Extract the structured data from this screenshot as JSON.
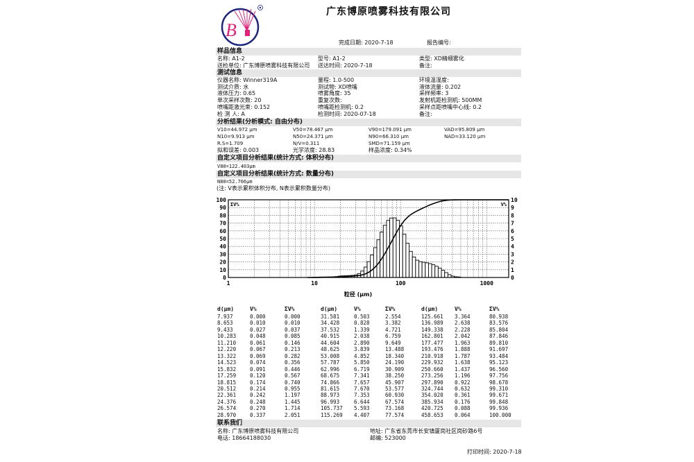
{
  "header": {
    "company": "广东博原喷雾科技有限公司",
    "logo_text": "B",
    "completion_date": "完成日期: 2020-7-18",
    "report_no": "报告编号:"
  },
  "sample": {
    "title": "样品信息",
    "rows": [
      [
        "名称: A1-2",
        "型号: A1-2",
        "类型: XD精细雾化"
      ],
      [
        "送检单位: 广东博原喷雾科技有限公司",
        "送达时间: 2020-7-18",
        "备注:"
      ]
    ]
  },
  "test": {
    "title": "测试信息",
    "rows": [
      [
        "仪器名称: Winner319A",
        "量程: 1.0-500",
        "环境温湿度:"
      ],
      [
        "测试介质: 水",
        "测试物: XD喷嘴",
        "液体流量: 0.202"
      ],
      [
        "液体压力: 0.65",
        "喷雾角度: 35",
        "采样频率: 3"
      ],
      [
        "单次采样次数: 20",
        "重复次数:",
        "发射机距检测机: 500MM"
      ],
      [
        "喷嘴距激光束: 0.152",
        "喷嘴距检测机: 0.2",
        "采样点距喷嘴中心线: 0.2"
      ],
      [
        "检 测 人: A",
        "检测时间: 2020-07-18",
        "备注:"
      ]
    ]
  },
  "analysis": {
    "title": "分析结果(分析模式: 自由分布)",
    "rows": [
      [
        "V10=44.972 μm",
        "V50=78.467 μm",
        "V90=179.091 μm",
        "VAD=95.809 μm"
      ],
      [
        "N10=9.913 μm",
        "N50=24.371 μm",
        "N90=66.310 μm",
        "NAD=33.120 μm"
      ],
      [
        "R.S=1.709",
        "N/V=0.311",
        "SMD=71.159 μm",
        ""
      ],
      [
        "拟和误差: 0.003",
        "光学浓度: 28.83",
        "样品浓度: 0.34%",
        ""
      ]
    ]
  },
  "custom_volume": {
    "title": "自定义项目分析结果(统计方式: 体积分布)",
    "value": "V80=122.403μm"
  },
  "custom_number": {
    "title": "自定义项目分析结果(统计方式: 数量分布)",
    "value": "N80=52.766μm"
  },
  "note": "(注: V表示累积体积分布, N表示累积数量分布)",
  "chart_data": {
    "type": "bar+line",
    "xlabel": "粒径 (μm)",
    "xscale": "log",
    "xlim": [
      1,
      1800
    ],
    "xticks": [
      "1",
      "10",
      "100",
      "1000"
    ],
    "left_axis_label": "ΣV%",
    "ylim_left": [
      0,
      100
    ],
    "yticks_left": [
      "0",
      "10",
      "20",
      "30",
      "40",
      "50",
      "60",
      "70",
      "80",
      "90",
      "100"
    ],
    "right_axis_label": "V%",
    "ylim_right": [
      0,
      10
    ],
    "yticks_right": [
      "0",
      "1",
      "2",
      "3",
      "4",
      "5",
      "6",
      "7",
      "8",
      "9",
      "10"
    ],
    "grid": true,
    "x": [
      7.937,
      8.653,
      9.433,
      10.283,
      11.21,
      12.22,
      13.322,
      14.523,
      15.832,
      17.259,
      18.815,
      20.512,
      22.361,
      24.376,
      26.574,
      28.97,
      31.581,
      34.428,
      37.532,
      40.915,
      44.604,
      48.625,
      53.008,
      57.787,
      62.996,
      68.675,
      74.866,
      81.615,
      88.973,
      96.993,
      105.737,
      115.269,
      125.661,
      136.989,
      149.338,
      162.801,
      177.477,
      193.476,
      210.918,
      229.932,
      250.66,
      273.256,
      297.89,
      324.744,
      354.02,
      385.934,
      420.725,
      458.653
    ],
    "v_percent": [
      0.0,
      0.01,
      0.027,
      0.048,
      0.061,
      0.067,
      0.069,
      0.074,
      0.091,
      0.12,
      0.174,
      0.214,
      0.242,
      0.248,
      0.27,
      0.337,
      0.503,
      0.828,
      1.339,
      2.038,
      2.89,
      3.839,
      4.852,
      5.85,
      6.719,
      7.341,
      7.657,
      7.67,
      7.353,
      6.644,
      5.593,
      4.407,
      3.364,
      2.638,
      2.228,
      2.042,
      1.963,
      1.888,
      1.787,
      1.638,
      1.437,
      1.196,
      0.922,
      0.632,
      0.361,
      0.176,
      0.088,
      0.064
    ],
    "cumulative_percent": [
      0.0,
      0.01,
      0.037,
      0.085,
      0.146,
      0.213,
      0.282,
      0.356,
      0.446,
      0.567,
      0.74,
      0.955,
      1.197,
      1.445,
      1.714,
      2.051,
      2.554,
      3.382,
      4.721,
      6.759,
      9.649,
      13.488,
      18.34,
      24.19,
      30.909,
      38.25,
      45.907,
      53.577,
      60.93,
      67.574,
      73.168,
      77.574,
      80.938,
      83.576,
      85.804,
      87.846,
      89.81,
      91.697,
      93.484,
      95.123,
      96.56,
      97.756,
      98.678,
      99.31,
      99.671,
      99.848,
      99.936,
      100.0
    ]
  },
  "table": {
    "headers": [
      "d(μm)",
      "V%",
      "ΣV%"
    ],
    "formats": [
      3,
      3,
      3
    ]
  },
  "contact": {
    "title": "联系我们",
    "name": "名称: 广东博原喷雾科技有限公司",
    "phone": "电话: 18664188030",
    "address": "地址: 广东省东莞市长安镇厦岗社区岗砂路6号",
    "zip": "邮编: 523000"
  },
  "print_time": "打印时间: 2020-7-18",
  "colors": {
    "logo_pink": "#e0207a",
    "logo_blue": "#1a237e",
    "section_bg": "#e6e6e6"
  }
}
